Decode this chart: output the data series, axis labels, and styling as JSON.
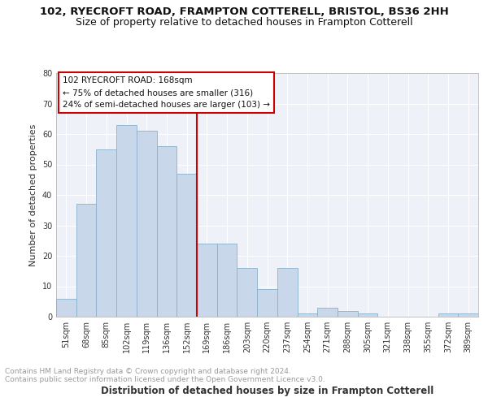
{
  "title1": "102, RYECROFT ROAD, FRAMPTON COTTERELL, BRISTOL, BS36 2HH",
  "title2": "Size of property relative to detached houses in Frampton Cotterell",
  "xlabel": "Distribution of detached houses by size in Frampton Cotterell",
  "ylabel": "Number of detached properties",
  "categories": [
    "51sqm",
    "68sqm",
    "85sqm",
    "102sqm",
    "119sqm",
    "136sqm",
    "152sqm",
    "169sqm",
    "186sqm",
    "203sqm",
    "220sqm",
    "237sqm",
    "254sqm",
    "271sqm",
    "288sqm",
    "305sqm",
    "321sqm",
    "338sqm",
    "355sqm",
    "372sqm",
    "389sqm"
  ],
  "values": [
    6,
    37,
    55,
    63,
    61,
    56,
    47,
    24,
    24,
    16,
    9,
    16,
    1,
    3,
    2,
    1,
    0,
    0,
    0,
    1,
    1
  ],
  "bar_color": "#c8d8ea",
  "bar_edge_color": "#8ab0cc",
  "vline_color": "#cc0000",
  "annotation_text": "102 RYECROFT ROAD: 168sqm\n← 75% of detached houses are smaller (316)\n24% of semi-detached houses are larger (103) →",
  "annotation_box_color": "#ffffff",
  "annotation_box_edge_color": "#cc0000",
  "ylim": [
    0,
    80
  ],
  "yticks": [
    0,
    10,
    20,
    30,
    40,
    50,
    60,
    70,
    80
  ],
  "background_color": "#eef2f8",
  "grid_color": "#ffffff",
  "footer_line1": "Contains HM Land Registry data © Crown copyright and database right 2024.",
  "footer_line2": "Contains public sector information licensed under the Open Government Licence v3.0.",
  "title1_fontsize": 9.5,
  "title2_fontsize": 9,
  "xlabel_fontsize": 8.5,
  "ylabel_fontsize": 8,
  "tick_fontsize": 7,
  "annotation_fontsize": 7.5,
  "footer_fontsize": 6.5
}
